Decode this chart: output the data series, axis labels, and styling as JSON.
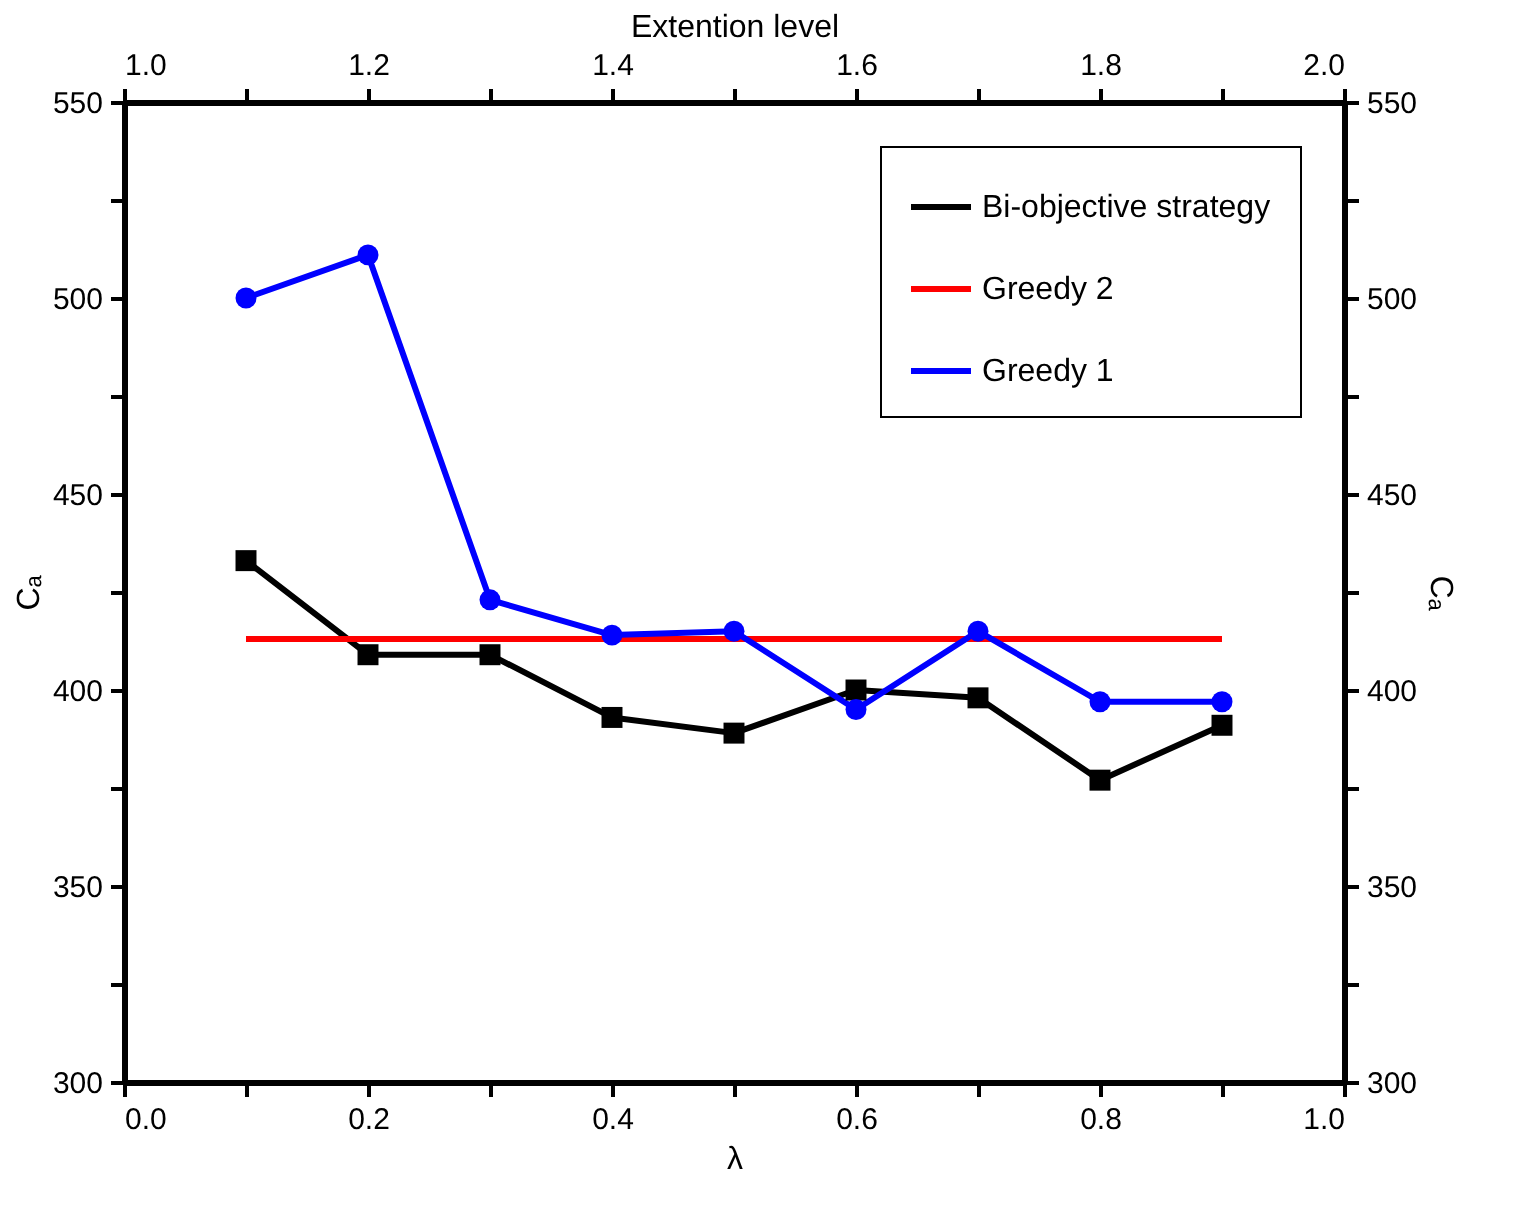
{
  "chart_data": {
    "type": "line",
    "xlabel": "λ",
    "ylabel": "Cₐ",
    "y2label": "Cₐ",
    "x2label": "Extention level",
    "x": [
      0.1,
      0.2,
      0.3,
      0.4,
      0.5,
      0.6,
      0.7,
      0.8,
      0.9
    ],
    "series": [
      {
        "name": "Bi-objective strategy",
        "color": "#000000",
        "marker": "square",
        "values": [
          433,
          409,
          409,
          393,
          389,
          400,
          398,
          377,
          391
        ]
      },
      {
        "name": "Greedy 2",
        "color": "#ff0000",
        "marker": "none",
        "values": [
          413,
          413,
          413,
          413,
          413,
          413,
          413,
          413,
          413
        ]
      },
      {
        "name": "Greedy 1",
        "color": "#0000ff",
        "marker": "circle",
        "values": [
          500,
          511,
          423,
          414,
          415,
          395,
          415,
          397,
          397
        ]
      }
    ],
    "xlim": [
      0,
      1
    ],
    "xticks": [
      {
        "value": 0,
        "label": "0.0"
      },
      {
        "value": 0.1,
        "label": null
      },
      0.2,
      {
        "value": 0.3,
        "label": null
      },
      0.4,
      {
        "value": 0.5,
        "label": null
      },
      0.6,
      {
        "value": 0.7,
        "label": null
      },
      0.8,
      {
        "value": 0.9,
        "label": null
      },
      {
        "value": 1,
        "label": "1.0"
      }
    ],
    "x2lim": [
      1,
      2
    ],
    "x2ticks": [
      {
        "value": 1,
        "label": "1.0"
      },
      {
        "value": 1.1,
        "label": null
      },
      1.2,
      {
        "value": 1.3,
        "label": null
      },
      1.4,
      {
        "value": 1.5,
        "label": null
      },
      1.6,
      {
        "value": 1.7,
        "label": null
      },
      1.8,
      {
        "value": 1.9,
        "label": null
      },
      {
        "value": 2,
        "label": "2.0"
      }
    ],
    "ylim": [
      300,
      550
    ],
    "yticks": [
      300,
      {
        "value": 325,
        "label": null
      },
      350,
      {
        "value": 375,
        "label": null
      },
      400,
      {
        "value": 425,
        "label": null
      },
      450,
      {
        "value": 475,
        "label": null
      },
      500,
      {
        "value": 525,
        "label": null
      },
      550
    ],
    "y2lim": [
      300,
      550
    ],
    "y2ticks": [
      300,
      {
        "value": 325,
        "label": null
      },
      350,
      {
        "value": 375,
        "label": null
      },
      400,
      {
        "value": 425,
        "label": null
      },
      450,
      {
        "value": 475,
        "label": null
      },
      500,
      {
        "value": 525,
        "label": null
      },
      550
    ],
    "grid": false,
    "legend": "top right",
    "line_style": "solid"
  }
}
